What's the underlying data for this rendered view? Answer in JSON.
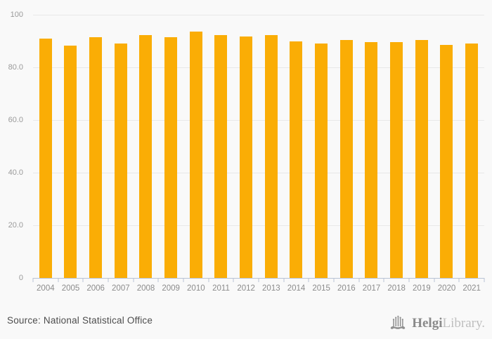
{
  "chart_data": {
    "type": "bar",
    "title": "",
    "xlabel": "",
    "ylabel": "",
    "categories": [
      "2004",
      "2005",
      "2006",
      "2007",
      "2008",
      "2009",
      "2010",
      "2011",
      "2012",
      "2013",
      "2014",
      "2015",
      "2016",
      "2017",
      "2018",
      "2019",
      "2020",
      "2021"
    ],
    "values": [
      90.9,
      88.3,
      91.6,
      89.2,
      92.2,
      91.4,
      93.5,
      92.2,
      91.8,
      92.2,
      89.8,
      89.1,
      90.4,
      89.5,
      89.7,
      90.4,
      88.5,
      89.0
    ],
    "ylim": [
      0,
      100
    ],
    "yticks": [
      {
        "value": 100,
        "label": "100"
      },
      {
        "value": 80,
        "label": "80.0"
      },
      {
        "value": 60,
        "label": "60.0"
      },
      {
        "value": 40,
        "label": "40.0"
      },
      {
        "value": 20,
        "label": "20.0"
      },
      {
        "value": 0,
        "label": "0"
      }
    ],
    "grid": true,
    "legend": false,
    "bar_color": "#FAAD05"
  },
  "footer": {
    "source_text": "Source: National Statistical Office",
    "logo": {
      "icon": "helgi-library-building-icon",
      "brand_bold": "Helgi",
      "brand_light": "Library.",
      "icon_color": "#8f8f8f"
    }
  }
}
